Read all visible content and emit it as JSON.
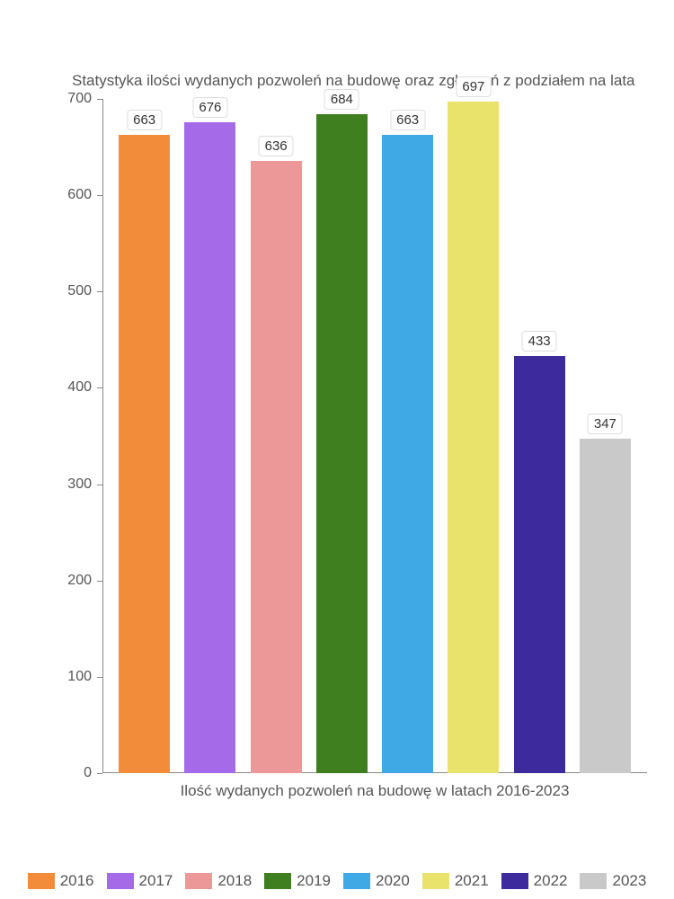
{
  "chart": {
    "type": "bar",
    "title": "Statystyka ilości wydanych pozwoleń na budowę oraz zgłoszeń z podziałem na lata",
    "title_fontsize": 17,
    "title_color": "#555555",
    "xlabel": "Ilość wydanych pozwoleń na budowę w latach 2016-2023",
    "label_fontsize": 17,
    "label_color": "#555555",
    "background_color": "#ffffff",
    "axis_color": "#888888",
    "ylim": [
      0,
      700
    ],
    "ytick_step": 100,
    "yticks": [
      "0",
      "100",
      "200",
      "300",
      "400",
      "500",
      "600",
      "700"
    ],
    "bar_width": 0.78,
    "value_label_bg": "#ffffff",
    "value_label_border": "#dddddd",
    "value_label_fontsize": 15,
    "series": [
      {
        "year": "2016",
        "value": 663,
        "color": "#f28c3b"
      },
      {
        "year": "2017",
        "value": 676,
        "color": "#a56ae8"
      },
      {
        "year": "2018",
        "value": 636,
        "color": "#ec9898"
      },
      {
        "year": "2019",
        "value": 684,
        "color": "#3f7f1f"
      },
      {
        "year": "2020",
        "value": 663,
        "color": "#3fa9e6"
      },
      {
        "year": "2021",
        "value": 697,
        "color": "#e9e36b"
      },
      {
        "year": "2022",
        "value": 433,
        "color": "#3d2b9e"
      },
      {
        "year": "2023",
        "value": 347,
        "color": "#c9c9c9"
      }
    ],
    "legend_fontsize": 17,
    "legend_color": "#555555"
  }
}
